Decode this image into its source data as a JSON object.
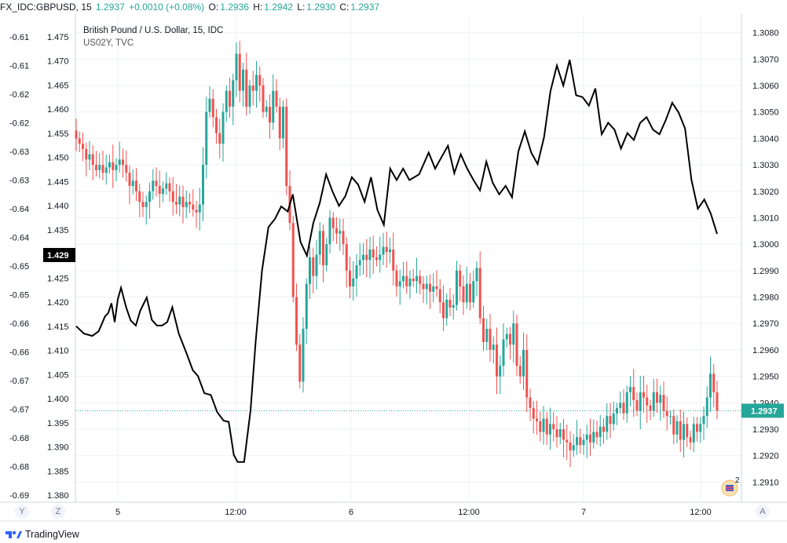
{
  "header": {
    "symbol": "FX_IDC:GBPUSD, 15",
    "last": "1.2937",
    "change": "+0.0010 (+0.08%)",
    "o_label": "O:",
    "o": "1.2936",
    "h_label": "H:",
    "h": "1.2942",
    "l_label": "L:",
    "l": "1.2930",
    "c_label": "C:",
    "c": "1.2937"
  },
  "legend": {
    "main": "British Pound / U.S. Dollar, 15, IDC",
    "overlay": "US02Y, TVC"
  },
  "corner_labels": {
    "y_button": "Y",
    "z_button": "Z",
    "a_button": "A"
  },
  "footer": {
    "brand": "TradingView"
  },
  "badge": {
    "count": "2"
  },
  "colors": {
    "up": "#26a69a",
    "down": "#ef5350",
    "overlay": "#000000",
    "price_line": "#26a69a",
    "grid": "#eef0f4"
  },
  "chart_data": {
    "type": "line",
    "x_ticks": [
      "5",
      "12:00",
      "6",
      "12:00",
      "7",
      "12:00"
    ],
    "left_axis": {
      "ticks": [
        "-0.61",
        "-0.61",
        "-0.62",
        "-0.62",
        "-0.63",
        "-0.63",
        "-0.64",
        "-0.64",
        "-0.65",
        "-0.65",
        "-0.66",
        "-0.66",
        "-0.67",
        "-0.67",
        "-0.68",
        "-0.68",
        "-0.69"
      ],
      "current_label": "1.429"
    },
    "inner_axis": {
      "ticks": [
        "1.475",
        "1.470",
        "1.465",
        "1.460",
        "1.455",
        "1.450",
        "1.445",
        "1.440",
        "1.435",
        "1.430",
        "1.425",
        "1.420",
        "1.415",
        "1.410",
        "1.405",
        "1.400",
        "1.395",
        "1.390",
        "1.385",
        "1.380"
      ],
      "range": [
        1.38,
        1.475
      ]
    },
    "right_axis": {
      "ticks": [
        "1.3080",
        "1.3070",
        "1.3060",
        "1.3050",
        "1.3040",
        "1.3030",
        "1.3020",
        "1.3010",
        "1.3000",
        "1.2990",
        "1.2980",
        "1.2970",
        "1.2960",
        "1.2950",
        "1.2940",
        "1.2930",
        "1.2920",
        "1.2910"
      ],
      "range": [
        1.2903,
        1.3087
      ],
      "current_label": "1.2937"
    },
    "series": [
      {
        "name": "British Pound / U.S. Dollar, 15, IDC",
        "kind": "close",
        "values": [
          1.304,
          1.3038,
          1.3036,
          1.3032,
          1.3034,
          1.303,
          1.3028,
          1.303,
          1.3027,
          1.3029,
          1.3031,
          1.3028,
          1.303,
          1.3032,
          1.303,
          1.3027,
          1.3022,
          1.3024,
          1.302,
          1.3016,
          1.3014,
          1.3016,
          1.302,
          1.3024,
          1.3022,
          1.3019,
          1.3021,
          1.3023,
          1.302,
          1.3016,
          1.3015,
          1.3018,
          1.3014,
          1.3016,
          1.3015,
          1.3013,
          1.3012,
          1.3015,
          1.303,
          1.305,
          1.3055,
          1.3048,
          1.3042,
          1.3038,
          1.305,
          1.3058,
          1.3052,
          1.3062,
          1.3072,
          1.3058,
          1.3066,
          1.3052,
          1.306,
          1.3058,
          1.3064,
          1.306,
          1.305,
          1.3052,
          1.3046,
          1.3058,
          1.3052,
          1.304,
          1.3052,
          1.3022,
          1.3008,
          1.298,
          1.2962,
          1.2948,
          1.2968,
          1.2985,
          1.2995,
          1.2988,
          1.2996,
          1.3005,
          1.2992,
          1.3,
          1.301,
          1.3006,
          1.3004,
          1.3005,
          1.3,
          1.299,
          1.2984,
          1.2987,
          1.2992,
          1.2994,
          1.2996,
          1.2994,
          1.2998,
          1.2995,
          1.2994,
          1.2996,
          1.2999,
          1.2997,
          1.2998,
          1.299,
          1.2984,
          1.2986,
          1.2988,
          1.2984,
          1.2987,
          1.2986,
          1.2988,
          1.2985,
          1.2983,
          1.2985,
          1.2982,
          1.2984,
          1.2983,
          1.2978,
          1.2972,
          1.2979,
          1.2976,
          1.2977,
          1.299,
          1.2984,
          1.2978,
          1.2985,
          1.2978,
          1.2986,
          1.2991,
          1.2972,
          1.2963,
          1.2968,
          1.296,
          1.2962,
          1.295,
          1.2954,
          1.2964,
          1.2966,
          1.2962,
          1.297,
          1.2954,
          1.295,
          1.296,
          1.2942,
          1.2938,
          1.2934,
          1.2933,
          1.2929,
          1.2934,
          1.2928,
          1.2932,
          1.293,
          1.2927,
          1.293,
          1.2926,
          1.2925,
          1.2922,
          1.2924,
          1.2927,
          1.2924,
          1.2926,
          1.2928,
          1.2925,
          1.2929,
          1.2927,
          1.2931,
          1.2929,
          1.2935,
          1.2932,
          1.2936,
          1.2938,
          1.294,
          1.2936,
          1.2944,
          1.2946,
          1.2941,
          1.2937,
          1.2944,
          1.2942,
          1.2939,
          1.2937,
          1.2944,
          1.294,
          1.2943,
          1.2937,
          1.2935,
          1.2935,
          1.2928,
          1.2933,
          1.2926,
          1.2932,
          1.2927,
          1.2925,
          1.2932,
          1.2929,
          1.2932,
          1.2935,
          1.2942,
          1.2951,
          1.2944,
          1.2937
        ]
      },
      {
        "name": "US02Y, TVC",
        "kind": "line",
        "points": [
          [
            0,
            -0.6605
          ],
          [
            0.012,
            -0.6618
          ],
          [
            0.025,
            -0.6622
          ],
          [
            0.035,
            -0.6614
          ],
          [
            0.045,
            -0.6588
          ],
          [
            0.05,
            -0.6582
          ],
          [
            0.055,
            -0.6565
          ],
          [
            0.06,
            -0.6598
          ],
          [
            0.065,
            -0.6558
          ],
          [
            0.07,
            -0.6538
          ],
          [
            0.078,
            -0.6572
          ],
          [
            0.085,
            -0.6595
          ],
          [
            0.093,
            -0.6604
          ],
          [
            0.1,
            -0.6578
          ],
          [
            0.11,
            -0.6555
          ],
          [
            0.118,
            -0.6594
          ],
          [
            0.126,
            -0.6604
          ],
          [
            0.134,
            -0.6604
          ],
          [
            0.142,
            -0.6598
          ],
          [
            0.15,
            -0.6572
          ],
          [
            0.16,
            -0.6618
          ],
          [
            0.172,
            -0.6652
          ],
          [
            0.182,
            -0.6682
          ],
          [
            0.19,
            -0.6692
          ],
          [
            0.2,
            -0.6722
          ],
          [
            0.21,
            -0.6725
          ],
          [
            0.22,
            -0.6755
          ],
          [
            0.23,
            -0.677
          ],
          [
            0.238,
            -0.6772
          ],
          [
            0.246,
            -0.683
          ],
          [
            0.252,
            -0.6842
          ],
          [
            0.262,
            -0.6842
          ],
          [
            0.272,
            -0.6752
          ],
          [
            0.28,
            -0.6632
          ],
          [
            0.29,
            -0.6508
          ],
          [
            0.3,
            -0.6432
          ],
          [
            0.31,
            -0.6418
          ],
          [
            0.32,
            -0.6396
          ],
          [
            0.33,
            -0.6405
          ],
          [
            0.338,
            -0.6375
          ],
          [
            0.35,
            -0.6458
          ],
          [
            0.36,
            -0.6482
          ],
          [
            0.37,
            -0.6425
          ],
          [
            0.38,
            -0.639
          ],
          [
            0.39,
            -0.634
          ],
          [
            0.4,
            -0.637
          ],
          [
            0.41,
            -0.6395
          ],
          [
            0.42,
            -0.6378
          ],
          [
            0.43,
            -0.6345
          ],
          [
            0.44,
            -0.6358
          ],
          [
            0.45,
            -0.6388
          ],
          [
            0.46,
            -0.6345
          ],
          [
            0.47,
            -0.6402
          ],
          [
            0.48,
            -0.6428
          ],
          [
            0.49,
            -0.633
          ],
          [
            0.5,
            -0.635
          ],
          [
            0.51,
            -0.633
          ],
          [
            0.52,
            -0.635
          ],
          [
            0.535,
            -0.634
          ],
          [
            0.55,
            -0.6302
          ],
          [
            0.56,
            -0.633
          ],
          [
            0.57,
            -0.631
          ],
          [
            0.58,
            -0.629
          ],
          [
            0.59,
            -0.6338
          ],
          [
            0.6,
            -0.6305
          ],
          [
            0.61,
            -0.633
          ],
          [
            0.62,
            -0.635
          ],
          [
            0.63,
            -0.6368
          ],
          [
            0.64,
            -0.6318
          ],
          [
            0.65,
            -0.6355
          ],
          [
            0.66,
            -0.6375
          ],
          [
            0.67,
            -0.636
          ],
          [
            0.68,
            -0.638
          ],
          [
            0.69,
            -0.63
          ],
          [
            0.7,
            -0.6265
          ],
          [
            0.71,
            -0.6302
          ],
          [
            0.72,
            -0.6322
          ],
          [
            0.73,
            -0.6275
          ],
          [
            0.74,
            -0.6195
          ],
          [
            0.75,
            -0.615
          ],
          [
            0.76,
            -0.6185
          ],
          [
            0.77,
            -0.614
          ],
          [
            0.78,
            -0.6202
          ],
          [
            0.79,
            -0.6205
          ],
          [
            0.8,
            -0.622
          ],
          [
            0.81,
            -0.619
          ],
          [
            0.82,
            -0.627
          ],
          [
            0.83,
            -0.625
          ],
          [
            0.84,
            -0.6262
          ],
          [
            0.85,
            -0.6295
          ],
          [
            0.86,
            -0.6268
          ],
          [
            0.87,
            -0.628
          ],
          [
            0.88,
            -0.625
          ],
          [
            0.89,
            -0.624
          ],
          [
            0.9,
            -0.6262
          ],
          [
            0.91,
            -0.627
          ],
          [
            0.92,
            -0.6245
          ],
          [
            0.93,
            -0.6215
          ],
          [
            0.94,
            -0.6232
          ],
          [
            0.95,
            -0.626
          ],
          [
            0.96,
            -0.635
          ],
          [
            0.97,
            -0.64
          ],
          [
            0.98,
            -0.6384
          ],
          [
            0.99,
            -0.6408
          ],
          [
            1.0,
            -0.6444
          ]
        ]
      }
    ]
  }
}
